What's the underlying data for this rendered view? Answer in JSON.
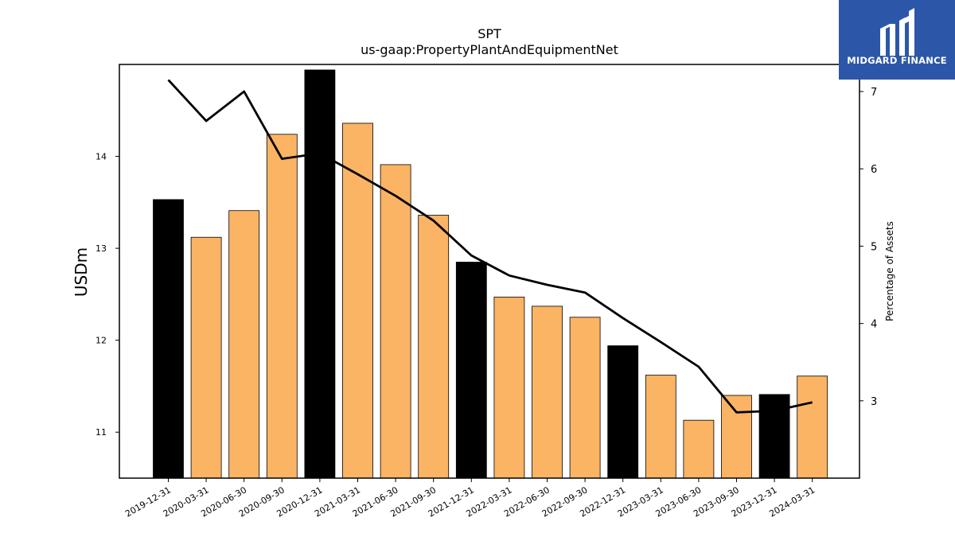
{
  "logo": {
    "text": "MIDGARD FINANCE",
    "background": "#2c57a8"
  },
  "chart_data": {
    "type": "bar",
    "title": "SPT",
    "subtitle": "us-gaap:PropertyPlantAndEquipmentNet",
    "ylabel": "USDm",
    "y2label": "Percentage of Assets",
    "ylim": [
      10.5,
      15.0
    ],
    "y2lim": [
      2.0,
      7.35
    ],
    "yticks": [
      11,
      12,
      13,
      14
    ],
    "y2ticks": [
      3,
      4,
      5,
      6,
      7
    ],
    "categories": [
      "2019-12-31",
      "2020-03-31",
      "2020-06-30",
      "2020-09-30",
      "2020-12-31",
      "2021-03-31",
      "2021-06-30",
      "2021-09-30",
      "2021-12-31",
      "2022-03-31",
      "2022-06-30",
      "2022-09-30",
      "2022-12-31",
      "2023-03-31",
      "2023-06-30",
      "2023-09-30",
      "2023-12-31",
      "2024-03-31"
    ],
    "series": [
      {
        "type": "bar",
        "axis": "left",
        "values": [
          13.53,
          13.12,
          13.41,
          14.24,
          14.94,
          14.36,
          13.91,
          13.36,
          12.85,
          12.47,
          12.37,
          12.25,
          11.94,
          11.62,
          11.13,
          11.4,
          11.41,
          11.61
        ]
      },
      {
        "type": "line",
        "axis": "right",
        "values": [
          7.15,
          6.62,
          7.0,
          6.13,
          6.2,
          5.93,
          5.65,
          5.33,
          4.88,
          4.62,
          4.5,
          4.4,
          4.07,
          3.76,
          3.44,
          2.85,
          2.87,
          2.98
        ]
      }
    ],
    "year_end_bars": [
      0,
      4,
      8,
      12,
      16
    ],
    "colors": {
      "bar": "#fbb464",
      "bar_year_end": "#000000",
      "line": "#000000"
    },
    "grid": false,
    "legend": "none"
  }
}
